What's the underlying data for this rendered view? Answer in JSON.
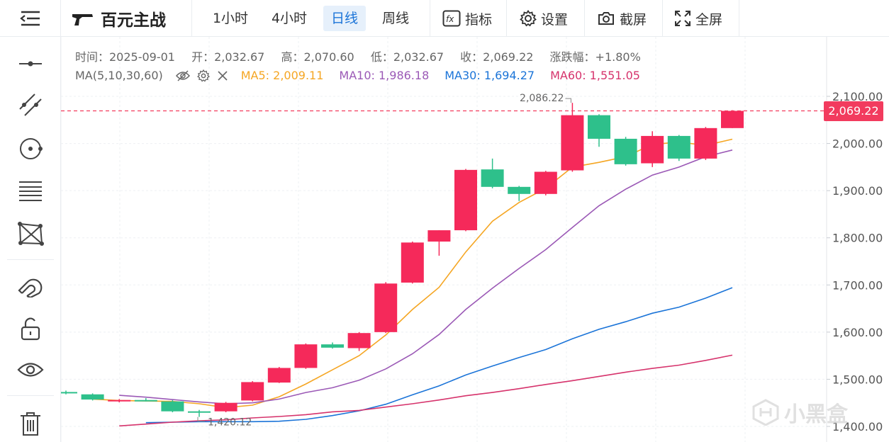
{
  "toolbar": {
    "title": "百元主战",
    "tabs": [
      {
        "label": "1小时",
        "active": false
      },
      {
        "label": "4小时",
        "active": false
      },
      {
        "label": "日线",
        "active": true
      },
      {
        "label": "周线",
        "active": false
      }
    ],
    "tools": {
      "indicator": "指标",
      "settings": "设置",
      "screenshot": "截屏",
      "fullscreen": "全屏"
    }
  },
  "sidebar": {
    "icons": [
      "horizontal-line-icon",
      "trend-line-icon",
      "circle-dot-icon",
      "fib-lines-icon",
      "pattern-icon",
      "magnet-icon",
      "unlock-icon",
      "eye-icon",
      "trash-icon"
    ]
  },
  "info": {
    "time": "时间：2025-09-01",
    "open": "开：2,032.67",
    "high": "高：2,070.60",
    "low": "低：2,032.67",
    "close": "收：2,069.22",
    "change": "涨跌幅：+1.80%"
  },
  "ma_legend": {
    "label": "MA(5,10,30,60)",
    "ma5": "MA5: 2,009.11",
    "ma10": "MA10: 1,986.18",
    "ma30": "MA30: 1,694.27",
    "ma60": "MA60: 1,551.05"
  },
  "colors": {
    "up": "#f5295a",
    "down": "#2ec08b",
    "ma5": "#f5a623",
    "ma10": "#9b59b6",
    "ma30": "#1b74d8",
    "ma60": "#d6336c",
    "price_line": "#f23b5e"
  },
  "price_tag": "2,069.22",
  "max_label": "2,086.22",
  "min_label": "1,420.12",
  "watermark": "小黑盒",
  "chart_data": {
    "type": "candlestick",
    "ylim": [
      1390,
      2170
    ],
    "y_ticks": [
      1400,
      1500,
      1600,
      1700,
      1800,
      1900,
      2000,
      2100
    ],
    "y_tick_labels": [
      "1,400.00",
      "1,500.00",
      "1,600.00",
      "1,700.00",
      "1,800.00",
      "1,900.00",
      "2,000.00",
      "2,100.00"
    ],
    "grid": true,
    "candles": [
      {
        "o": 1473,
        "h": 1476,
        "l": 1468,
        "c": 1470
      },
      {
        "o": 1468,
        "h": 1470,
        "l": 1455,
        "c": 1457
      },
      {
        "o": 1455,
        "h": 1458,
        "l": 1451,
        "c": 1456
      },
      {
        "o": 1456,
        "h": 1460,
        "l": 1453,
        "c": 1454
      },
      {
        "o": 1453,
        "h": 1456,
        "l": 1430,
        "c": 1432
      },
      {
        "o": 1432,
        "h": 1435,
        "l": 1420.12,
        "c": 1430
      },
      {
        "o": 1432,
        "h": 1452,
        "l": 1430,
        "c": 1450
      },
      {
        "o": 1455,
        "h": 1496,
        "l": 1453,
        "c": 1494
      },
      {
        "o": 1493,
        "h": 1526,
        "l": 1492,
        "c": 1524
      },
      {
        "o": 1524,
        "h": 1576,
        "l": 1522,
        "c": 1574
      },
      {
        "o": 1574,
        "h": 1578,
        "l": 1565,
        "c": 1567
      },
      {
        "o": 1566,
        "h": 1600,
        "l": 1560,
        "c": 1598
      },
      {
        "o": 1600,
        "h": 1706,
        "l": 1598,
        "c": 1703
      },
      {
        "o": 1705,
        "h": 1792,
        "l": 1703,
        "c": 1790
      },
      {
        "o": 1792,
        "h": 1816,
        "l": 1762,
        "c": 1816
      },
      {
        "o": 1816,
        "h": 1946,
        "l": 1814,
        "c": 1944
      },
      {
        "o": 1945,
        "h": 1968,
        "l": 1905,
        "c": 1908
      },
      {
        "o": 1908,
        "h": 1910,
        "l": 1878,
        "c": 1893
      },
      {
        "o": 1893,
        "h": 1942,
        "l": 1890,
        "c": 1940
      },
      {
        "o": 1943,
        "h": 2086.22,
        "l": 1940,
        "c": 2060
      },
      {
        "o": 2060,
        "h": 2062,
        "l": 1993,
        "c": 2010
      },
      {
        "o": 2010,
        "h": 2014,
        "l": 1953,
        "c": 1956
      },
      {
        "o": 1958,
        "h": 2026,
        "l": 1950,
        "c": 2016
      },
      {
        "o": 2016,
        "h": 2018,
        "l": 1963,
        "c": 1968
      },
      {
        "o": 1968,
        "h": 2035,
        "l": 1965,
        "c": 2032.67
      },
      {
        "o": 2032.67,
        "h": 2070.6,
        "l": 2032.67,
        "c": 2069.22
      }
    ],
    "series": [
      {
        "name": "MA5",
        "values": [
          1458,
          1455,
          1454,
          1453,
          1448,
          1440,
          1445,
          1463,
          1490,
          1520,
          1550,
          1594,
          1648,
          1695,
          1770,
          1835,
          1875,
          1905,
          1950,
          1960,
          1972,
          1998,
          2003,
          1996,
          2009.11
        ]
      },
      {
        "name": "MA10",
        "values": [
          1466,
          1462,
          1457,
          1452,
          1448,
          1450,
          1458,
          1472,
          1482,
          1498,
          1522,
          1554,
          1595,
          1648,
          1693,
          1735,
          1775,
          1822,
          1868,
          1903,
          1933,
          1950,
          1972,
          1986.18
        ]
      },
      {
        "name": "MA30",
        "values": [
          1408,
          1409,
          1410,
          1410,
          1410,
          1411,
          1415,
          1423,
          1433,
          1447,
          1467,
          1486,
          1509,
          1528,
          1546,
          1563,
          1586,
          1606,
          1622,
          1640,
          1653,
          1672,
          1694.27
        ]
      },
      {
        "name": "MA60",
        "values": [
          1401,
          1405,
          1409,
          1412,
          1414,
          1418,
          1421,
          1425,
          1431,
          1434,
          1441,
          1448,
          1456,
          1465,
          1472,
          1480,
          1489,
          1497,
          1506,
          1515,
          1523,
          1530,
          1540,
          1551.05
        ]
      }
    ],
    "last_price": 2069.22
  }
}
